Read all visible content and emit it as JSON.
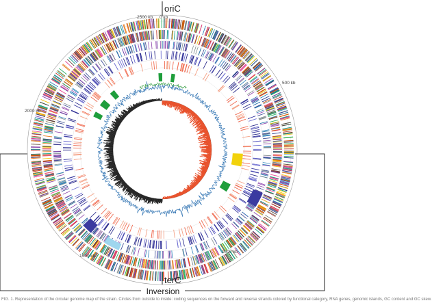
{
  "markers": {
    "top_label": "oriC",
    "bottom_label": "terC",
    "region_label": "Inversion"
  },
  "scale_labels": [
    "0 kb",
    "500 kb",
    "1000 kb",
    "1500 kb",
    "2000 kb",
    "2500 kb"
  ],
  "caption": "FIG. 1. Representation of the circular genome map of the strain. Circles from outside to inside: coding sequences on the forward and reverse strands colored by functional category, RNA genes, genomic islands, GC content and GC skew.",
  "colors": {
    "axis": "#777777",
    "bracket": "#333333",
    "gc_skew_positive": "#e8502a",
    "gc_skew_negative": "#222222",
    "gc_content": "#2a6fb0",
    "gc_content_high": "#2e9a3c",
    "islands": "#1f9e3c",
    "islands_highlight": "#f2d20c",
    "islands_light": "#9fd6ee",
    "rna": "#f06a50",
    "mobile": "#3a3aa0",
    "cds_palette": [
      "#c0392b",
      "#2c3e8c",
      "#27ae60",
      "#8e44ad",
      "#e67e22",
      "#16a085",
      "#7f8c8d",
      "#d35400",
      "#2980b9",
      "#f1c40f",
      "#5d4037",
      "#e84393"
    ]
  }
}
